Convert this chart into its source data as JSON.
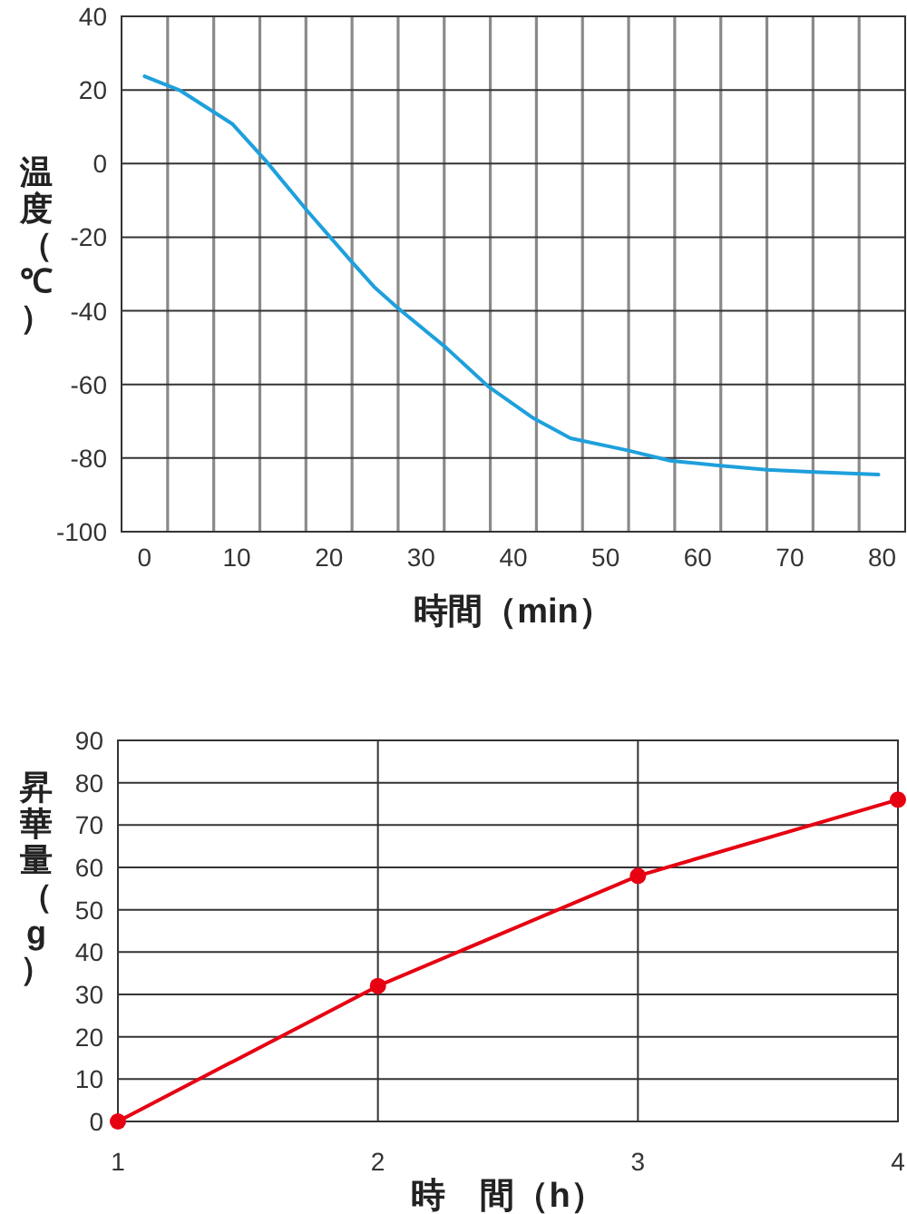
{
  "chart_data": [
    {
      "type": "line",
      "xlabel": "時間（min）",
      "ylabel": "温度（℃）",
      "x": [
        0,
        3.9,
        9.5,
        13.1,
        17.7,
        22.3,
        24.9,
        27.5,
        32.7,
        37.3,
        42.2,
        46.2,
        52.4,
        57,
        62.2,
        67.5,
        72.7,
        79.6
      ],
      "series": [
        {
          "color": "#1ea0dc",
          "values": [
            23.7,
            19.8,
            10.8,
            0.9,
            -13,
            -26.2,
            -33.5,
            -39.3,
            -50,
            -60.6,
            -69.2,
            -74.6,
            -77.9,
            -80.7,
            -82,
            -83.2,
            -83.8,
            -84.5
          ]
        }
      ],
      "xlim": [
        -2.5,
        82.5
      ],
      "xticks": [
        0,
        10,
        20,
        30,
        40,
        50,
        60,
        70,
        80,
        {
          "value": 2.5,
          "label": null
        },
        {
          "value": 7.5,
          "label": null
        },
        {
          "value": 12.5,
          "label": null
        },
        {
          "value": 17.5,
          "label": null
        },
        {
          "value": 22.5,
          "label": null
        },
        {
          "value": 27.5,
          "label": null
        },
        {
          "value": 32.5,
          "label": null
        },
        {
          "value": 37.5,
          "label": null
        },
        {
          "value": 42.5,
          "label": null
        },
        {
          "value": 47.5,
          "label": null
        },
        {
          "value": 52.5,
          "label": null
        },
        {
          "value": 57.5,
          "label": null
        },
        {
          "value": 62.5,
          "label": null
        },
        {
          "value": 67.5,
          "label": null
        },
        {
          "value": 72.5,
          "label": null
        },
        {
          "value": 77.5,
          "label": null
        }
      ],
      "ylim": [
        -100,
        40
      ],
      "yticks": [
        -100,
        -80,
        -60,
        -40,
        -20,
        0,
        20,
        40
      ],
      "grid": true,
      "marker": "none",
      "line_style": "solid"
    },
    {
      "type": "line",
      "xlabel": "時　間（h）",
      "ylabel": "昇華量（g）",
      "x": [
        1,
        2,
        3,
        4
      ],
      "series": [
        {
          "color": "#e60012",
          "values": [
            0,
            32,
            58,
            76
          ]
        }
      ],
      "xlim": [
        1,
        4
      ],
      "xticks": [
        1,
        2,
        3,
        4
      ],
      "ylim": [
        0,
        90
      ],
      "yticks": [
        0,
        10,
        20,
        30,
        40,
        50,
        60,
        70,
        80,
        90
      ],
      "grid": true,
      "marker": "circle",
      "line_style": "solid"
    }
  ]
}
